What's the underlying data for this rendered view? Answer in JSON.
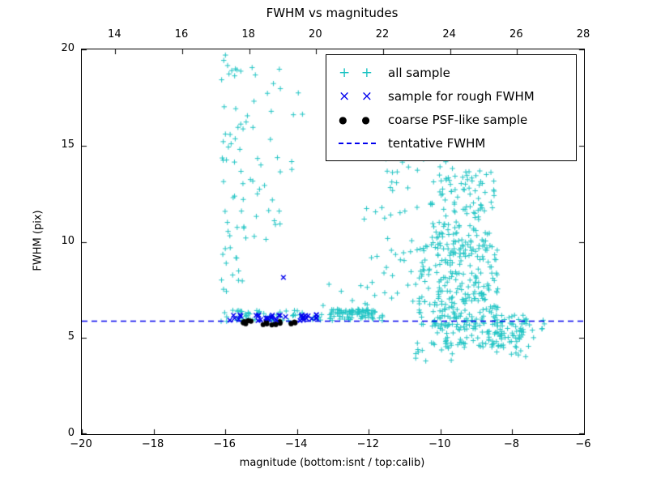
{
  "figure": {
    "title": "FWHM vs magnitudes",
    "xlabel": "magnitude (bottom:isnt / top:calib)",
    "ylabel": "FWHM (pix)"
  },
  "colors": {
    "background": "#ffffff",
    "axes": "#000000",
    "all_sample": "#20c4c4",
    "rough_fwhm": "#0000ee",
    "coarse_psf": "#000000",
    "tentative_fwhm": "#0000ee"
  },
  "chart_data": {
    "type": "scatter",
    "title": "FWHM vs magnitudes",
    "xlabel": "magnitude (bottom:isnt / top:calib)",
    "ylabel": "FWHM (pix)",
    "xlim": [
      -20,
      -6
    ],
    "ylim": [
      0,
      20
    ],
    "grid": false,
    "legend_position": "upper right",
    "x_ticks": [
      -20,
      -18,
      -16,
      -14,
      -12,
      -10,
      -8,
      -6
    ],
    "x_tick_labels": [
      "−20",
      "−18",
      "−16",
      "−14",
      "−12",
      "−10",
      "−8",
      "−6"
    ],
    "y_ticks": [
      0,
      5,
      10,
      15,
      20
    ],
    "y_tick_labels": [
      "0",
      "5",
      "10",
      "15",
      "20"
    ],
    "top_axis": {
      "lim": [
        13,
        28
      ],
      "ticks": [
        14,
        16,
        18,
        20,
        22,
        24,
        26,
        28
      ],
      "tick_labels": [
        "14",
        "16",
        "18",
        "20",
        "22",
        "24",
        "26",
        "28"
      ]
    },
    "hline": {
      "y": 5.9,
      "style": "dashed",
      "color": "#0000ee",
      "label": "tentative FWHM"
    },
    "series": [
      {
        "name": "all sample",
        "marker": "plus",
        "color": "#20c4c4",
        "clusters": [
          {
            "n": 60,
            "x": [
              -16.15,
              -15.35
            ],
            "y": [
              5.8,
              19.9
            ]
          },
          {
            "n": 26,
            "x": [
              -15.35,
              -14.45
            ],
            "y": [
              10.0,
              19.5
            ]
          },
          {
            "n": 7,
            "x": [
              -14.5,
              -13.8
            ],
            "y": [
              12.5,
              18.0
            ]
          },
          {
            "n": 55,
            "x": [
              -16.05,
              -13.4
            ],
            "y": [
              5.85,
              6.45
            ]
          },
          {
            "n": 90,
            "x": [
              -13.4,
              -11.6
            ],
            "y": [
              5.9,
              6.5
            ]
          },
          {
            "n": 45,
            "x": [
              -12.3,
              -10.4
            ],
            "y": [
              6.5,
              13.5
            ]
          },
          {
            "n": 230,
            "x": [
              -10.6,
              -8.4
            ],
            "y": [
              5.6,
              10.0
            ]
          },
          {
            "n": 130,
            "x": [
              -10.3,
              -8.5
            ],
            "y": [
              9.5,
              13.8
            ]
          },
          {
            "n": 12,
            "x": [
              -10.9,
              -9.2
            ],
            "y": [
              13.8,
              15.3
            ]
          },
          {
            "n": 140,
            "x": [
              -10.2,
              -7.6
            ],
            "y": [
              4.5,
              6.2
            ]
          },
          {
            "n": 30,
            "x": [
              -8.6,
              -7.1
            ],
            "y": [
              4.0,
              6.0
            ]
          },
          {
            "n": 15,
            "x": [
              -10.8,
              -9.6
            ],
            "y": [
              3.8,
              4.9
            ]
          },
          {
            "n": 8,
            "x": [
              -11.6,
              -10.6
            ],
            "y": [
              13.0,
              14.6
            ]
          },
          {
            "n": 4,
            "x": [
              -13.3,
              -12.4
            ],
            "y": [
              6.6,
              8.0
            ]
          }
        ]
      },
      {
        "name": "sample for rough FWHM",
        "marker": "x",
        "color": "#0000ee",
        "clusters": [
          {
            "n": 6,
            "x": [
              -15.9,
              -15.55
            ],
            "y": [
              5.9,
              6.2
            ]
          },
          {
            "n": 16,
            "x": [
              -15.15,
              -14.2
            ],
            "y": [
              5.88,
              6.22
            ]
          },
          {
            "n": 14,
            "x": [
              -14.0,
              -13.45
            ],
            "y": [
              5.9,
              6.25
            ]
          }
        ],
        "points": [
          [
            -14.38,
            8.15
          ]
        ]
      },
      {
        "name": "coarse PSF-like sample",
        "marker": "dot",
        "color": "#000000",
        "clusters": [
          {
            "n": 7,
            "x": [
              -15.5,
              -15.12
            ],
            "y": [
              5.7,
              5.9
            ]
          },
          {
            "n": 8,
            "x": [
              -14.95,
              -14.4
            ],
            "y": [
              5.68,
              5.88
            ]
          },
          {
            "n": 4,
            "x": [
              -14.22,
              -13.95
            ],
            "y": [
              5.72,
              5.86
            ]
          }
        ]
      }
    ]
  }
}
